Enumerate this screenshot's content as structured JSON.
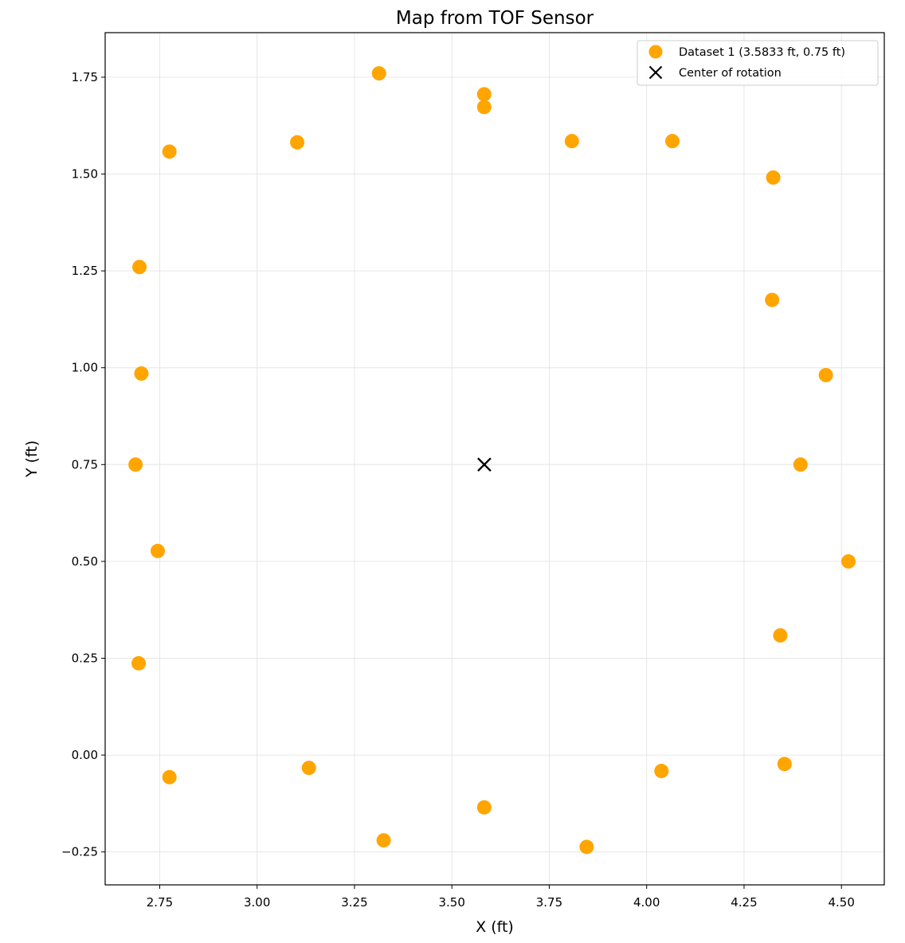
{
  "chart_data": {
    "type": "scatter",
    "title": "Map from TOF Sensor",
    "xlabel": "X (ft)",
    "ylabel": "Y (ft)",
    "xlim": [
      2.61,
      4.61
    ],
    "ylim": [
      -0.335,
      1.865
    ],
    "xticks": [
      2.75,
      3.0,
      3.25,
      3.5,
      3.75,
      4.0,
      4.25,
      4.5
    ],
    "xtick_labels": [
      "2.75",
      "3.00",
      "3.25",
      "3.50",
      "3.75",
      "4.00",
      "4.25",
      "4.50"
    ],
    "yticks": [
      -0.25,
      0.0,
      0.25,
      0.5,
      0.75,
      1.0,
      1.25,
      1.5,
      1.75
    ],
    "ytick_labels": [
      "−0.25",
      "0.00",
      "0.25",
      "0.50",
      "0.75",
      "1.00",
      "1.25",
      "1.50",
      "1.75"
    ],
    "grid": true,
    "legend_position": "top-right",
    "series": [
      {
        "name": "Dataset 1 (3.5833 ft, 0.75 ft)",
        "marker": "circle",
        "color": "#FFA500",
        "points": [
          {
            "x": 3.313,
            "y": 1.76
          },
          {
            "x": 3.583,
            "y": 1.706
          },
          {
            "x": 3.583,
            "y": 1.673
          },
          {
            "x": 3.103,
            "y": 1.582
          },
          {
            "x": 3.808,
            "y": 1.585
          },
          {
            "x": 4.066,
            "y": 1.585
          },
          {
            "x": 2.775,
            "y": 1.558
          },
          {
            "x": 4.325,
            "y": 1.491
          },
          {
            "x": 2.698,
            "y": 1.26
          },
          {
            "x": 4.322,
            "y": 1.175
          },
          {
            "x": 2.703,
            "y": 0.985
          },
          {
            "x": 4.46,
            "y": 0.981
          },
          {
            "x": 2.688,
            "y": 0.75
          },
          {
            "x": 4.395,
            "y": 0.75
          },
          {
            "x": 2.745,
            "y": 0.527
          },
          {
            "x": 4.518,
            "y": 0.5
          },
          {
            "x": 4.343,
            "y": 0.309
          },
          {
            "x": 2.696,
            "y": 0.237
          },
          {
            "x": 2.775,
            "y": -0.057
          },
          {
            "x": 3.133,
            "y": -0.033
          },
          {
            "x": 4.038,
            "y": -0.041
          },
          {
            "x": 4.354,
            "y": -0.023
          },
          {
            "x": 3.583,
            "y": -0.135
          },
          {
            "x": 3.325,
            "y": -0.22
          },
          {
            "x": 3.846,
            "y": -0.237
          }
        ]
      },
      {
        "name": "Center of rotation",
        "marker": "x",
        "color": "#000000",
        "points": [
          {
            "x": 3.5833,
            "y": 0.75
          }
        ]
      }
    ]
  }
}
